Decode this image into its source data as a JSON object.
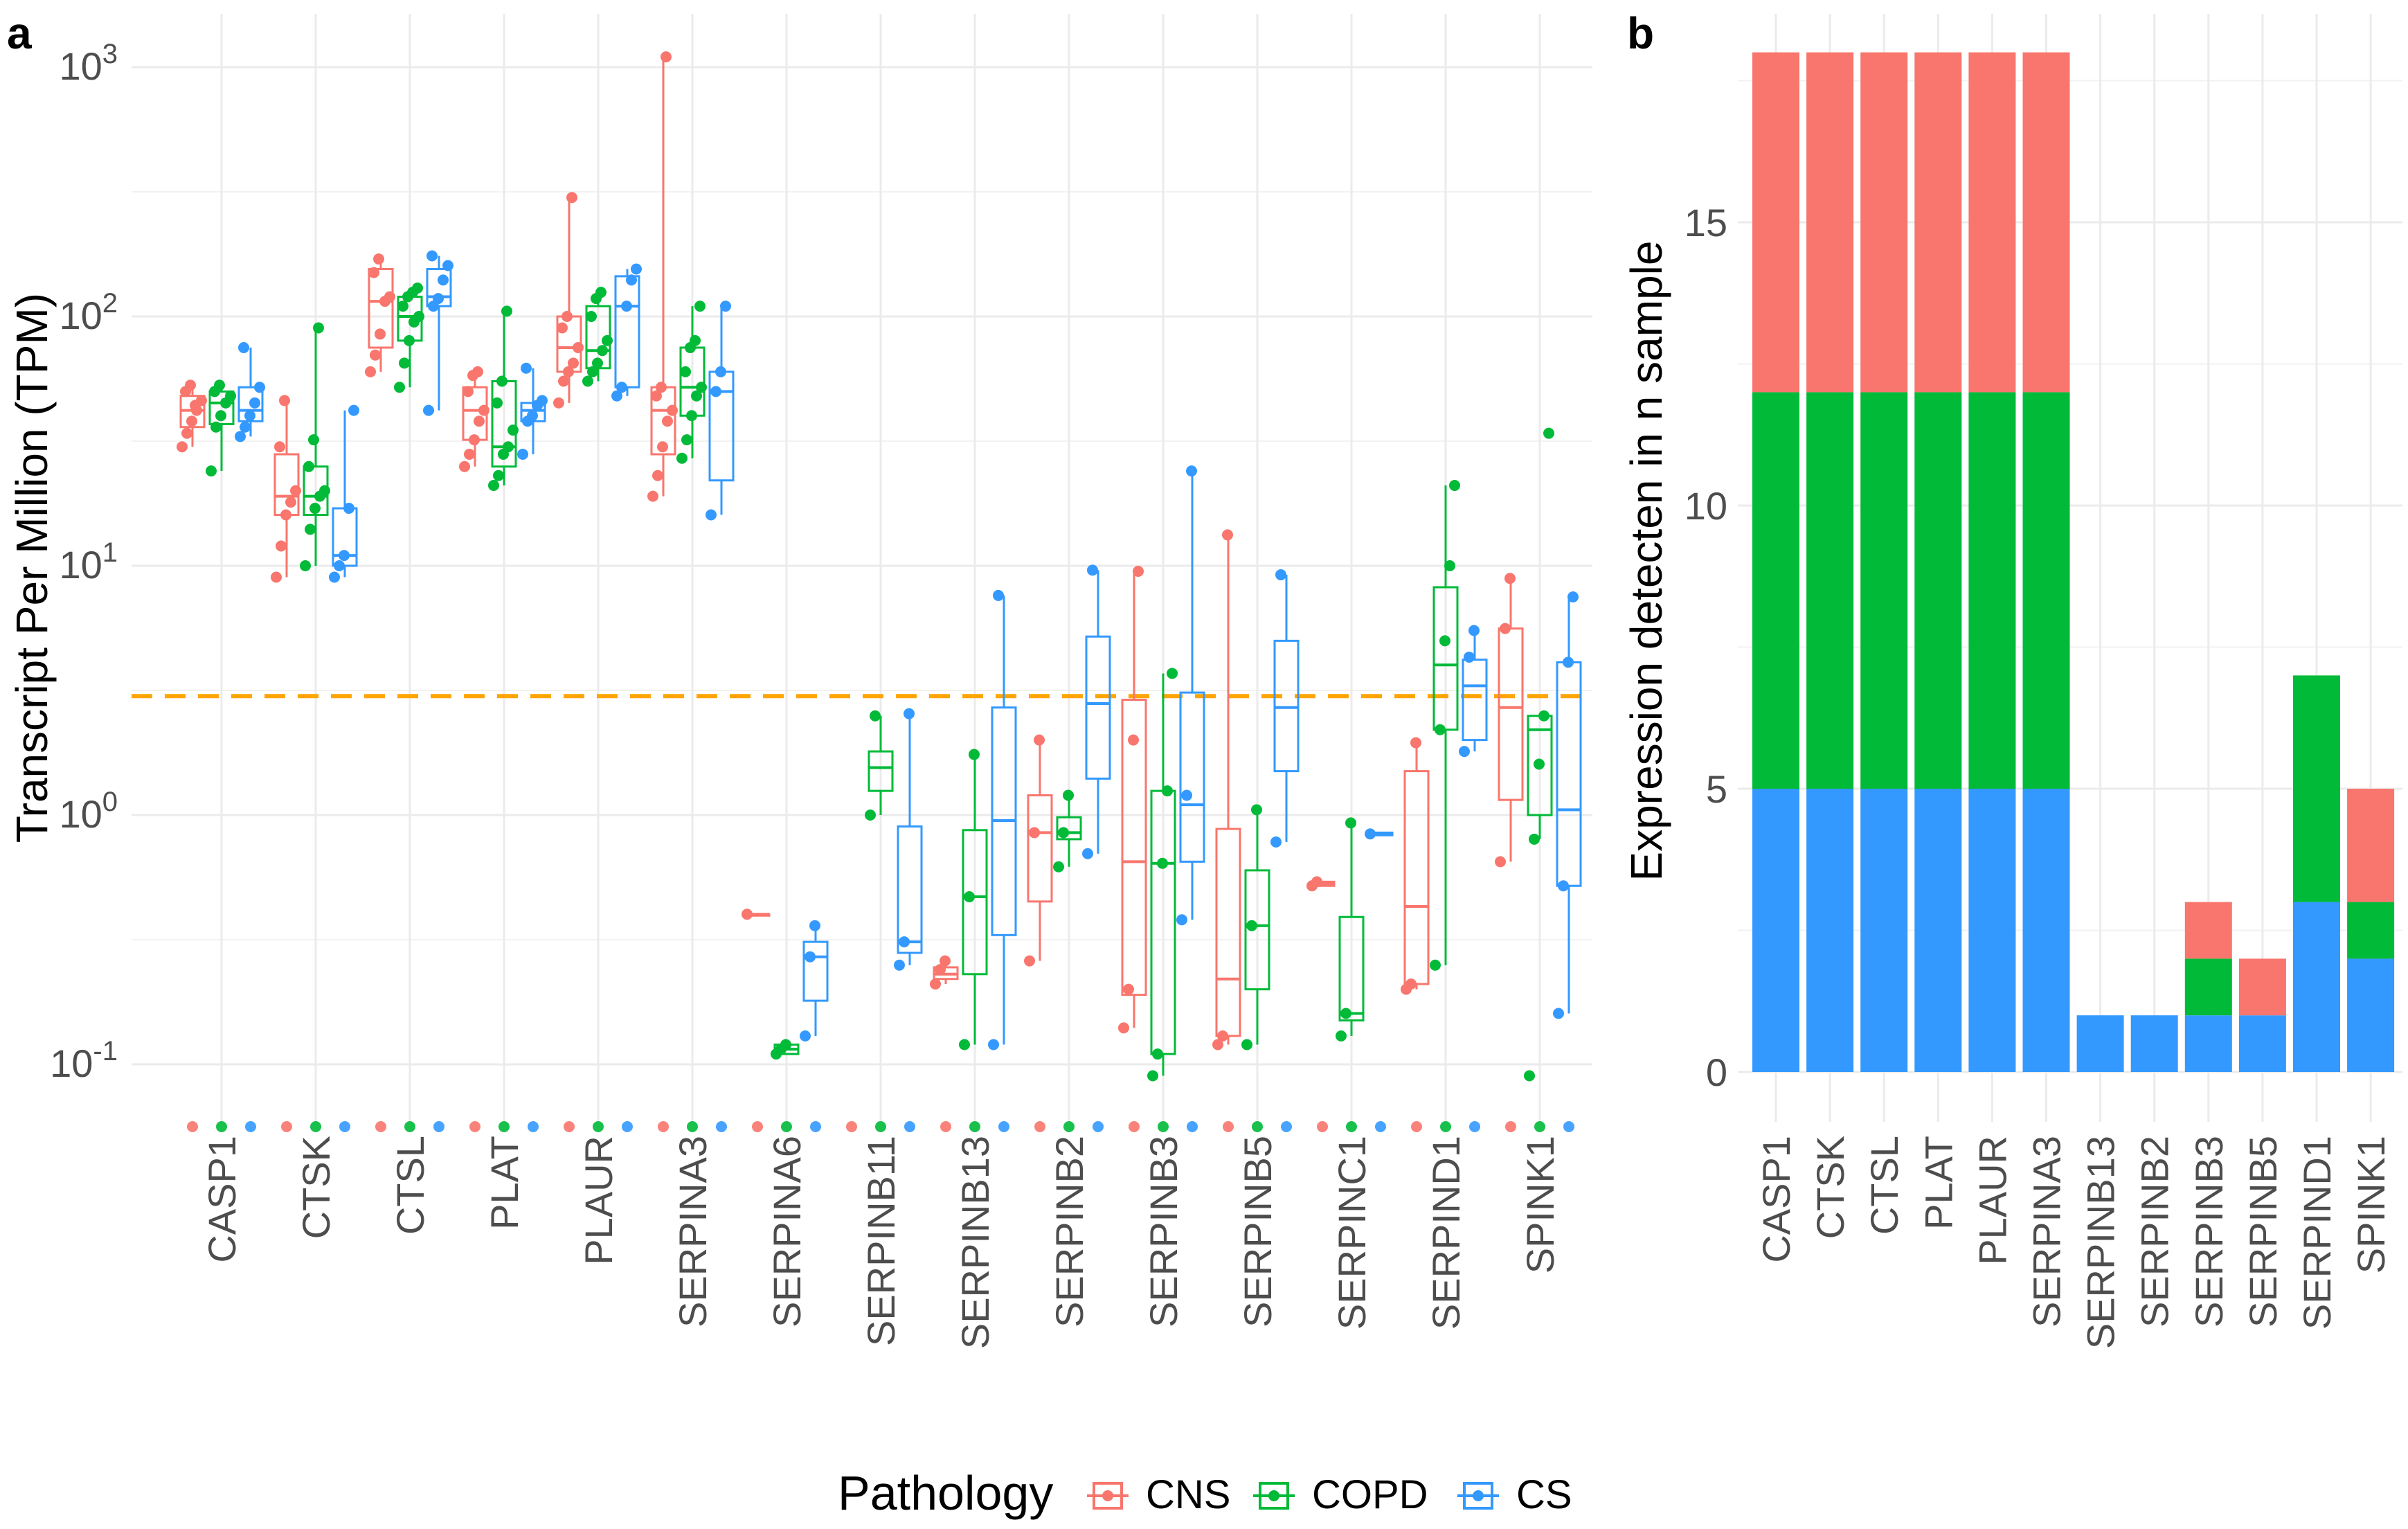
{
  "figure": {
    "panel_a_tag": "a",
    "panel_b_tag": "b",
    "legend_title": "Pathology",
    "colors": {
      "CNS": "#F8766D",
      "COPD": "#00BA38",
      "CS": "#3399FF",
      "threshold": "#FFA500"
    }
  },
  "chart_data": [
    {
      "type": "box",
      "panel": "a",
      "ylabel": "Transcript Per Million (TPM)",
      "xlabel": "",
      "yscale": "log10",
      "ylim": [
        0.05,
        1300
      ],
      "yticks": [
        {
          "value": 0.1,
          "base": "10",
          "exp": "-1"
        },
        {
          "value": 1,
          "base": "10",
          "exp": "0"
        },
        {
          "value": 10,
          "base": "10",
          "exp": "1"
        },
        {
          "value": 100,
          "base": "10",
          "exp": "2"
        },
        {
          "value": 1000,
          "base": "10",
          "exp": "3"
        }
      ],
      "threshold": 3,
      "series_names": [
        "CNS",
        "COPD",
        "CS"
      ],
      "categories": [
        "CASP1",
        "CTSK",
        "CTSL",
        "PLAT",
        "PLAUR",
        "SERPINA3",
        "SERPINA6",
        "SERPINB11",
        "SERPINB13",
        "SERPINB2",
        "SERPINB3",
        "SERPINB5",
        "SERPINC1",
        "SERPIND1",
        "SPINK1"
      ],
      "groups": [
        {
          "gene": "CASP1",
          "CNS": {
            "box": [
              30,
              36,
              42,
              48,
              53
            ],
            "points": [
              30,
              34,
              38,
              42,
              46,
              50,
              53,
              44
            ]
          },
          "COPD": {
            "box": [
              24,
              37,
              45,
              50,
              53
            ],
            "points": [
              24,
              36,
              40,
              45,
              48,
              50,
              53
            ]
          },
          "CS": {
            "box": [
              33,
              38,
              42,
              52,
              75
            ],
            "points": [
              33,
              36,
              40,
              45,
              52,
              75
            ]
          }
        },
        {
          "gene": "CTSK",
          "CNS": {
            "box": [
              9,
              16,
              19,
              28,
              46
            ],
            "points": [
              9,
              12,
              16,
              18,
              20,
              30,
              46
            ]
          },
          "COPD": {
            "box": [
              10,
              16,
              19,
              25,
              90
            ],
            "points": [
              10,
              14,
              17,
              19,
              20,
              25,
              32,
              90
            ]
          },
          "CS": {
            "box": [
              9,
              10,
              11,
              17,
              42
            ],
            "points": [
              9,
              10,
              11,
              17,
              42
            ]
          }
        },
        {
          "gene": "CTSL",
          "CNS": {
            "box": [
              60,
              75,
              115,
              155,
              170
            ],
            "points": [
              60,
              70,
              85,
              115,
              120,
              150,
              170
            ]
          },
          "COPD": {
            "box": [
              52,
              80,
              100,
              120,
              130
            ],
            "points": [
              52,
              65,
              80,
              95,
              100,
              110,
              120,
              125,
              130
            ]
          },
          "CS": {
            "box": [
              42,
              110,
              120,
              155,
              175
            ],
            "points": [
              42,
              110,
              118,
              140,
              160,
              175
            ]
          }
        },
        {
          "gene": "PLAT",
          "CNS": {
            "box": [
              25,
              32,
              42,
              52,
              60
            ],
            "points": [
              25,
              28,
              32,
              38,
              42,
              50,
              58,
              60
            ]
          },
          "COPD": {
            "box": [
              21,
              25,
              30,
              55,
              105
            ],
            "points": [
              21,
              23,
              28,
              30,
              35,
              45,
              55,
              105
            ]
          },
          "CS": {
            "box": [
              28,
              38,
              42,
              45,
              62
            ],
            "points": [
              28,
              38,
              40,
              44,
              46,
              62
            ]
          }
        },
        {
          "gene": "PLAUR",
          "CNS": {
            "box": [
              45,
              60,
              75,
              100,
              300
            ],
            "points": [
              45,
              55,
              60,
              65,
              75,
              90,
              100,
              300
            ]
          },
          "COPD": {
            "box": [
              55,
              62,
              73,
              110,
              125
            ],
            "points": [
              55,
              60,
              65,
              73,
              80,
              100,
              118,
              125
            ]
          },
          "CS": {
            "box": [
              48,
              52,
              110,
              145,
              155
            ],
            "points": [
              48,
              52,
              110,
              140,
              155
            ]
          }
        },
        {
          "gene": "SERPINA3",
          "CNS": {
            "box": [
              19,
              28,
              42,
              52,
              1100
            ],
            "points": [
              19,
              23,
              30,
              38,
              42,
              48,
              52,
              1100
            ]
          },
          "COPD": {
            "box": [
              27,
              40,
              52,
              75,
              110
            ],
            "points": [
              27,
              32,
              40,
              48,
              52,
              60,
              75,
              80,
              110
            ]
          },
          "CS": {
            "box": [
              16,
              22,
              50,
              60,
              110
            ],
            "points": [
              16,
              50,
              60,
              110
            ]
          }
        },
        {
          "gene": "SERPINA6",
          "CNS": {
            "box": [
              0.4,
              0.4,
              0.4,
              0.4,
              0.4
            ],
            "points": [
              0.4
            ]
          },
          "COPD": {
            "box": [
              0.11,
              0.11,
              0.115,
              0.12,
              0.12
            ],
            "points": [
              0.11,
              0.115,
              0.12
            ]
          },
          "CS": {
            "box": [
              0.13,
              0.18,
              0.27,
              0.31,
              0.36
            ],
            "points": [
              0.13,
              0.27,
              0.36
            ]
          }
        },
        {
          "gene": "SERPINB11",
          "COPD": {
            "box": [
              1.0,
              1.25,
              1.55,
              1.8,
              2.5
            ],
            "points": [
              1.0,
              2.5
            ]
          },
          "CS": {
            "box": [
              0.25,
              0.28,
              0.31,
              0.9,
              2.55
            ],
            "points": [
              0.25,
              0.31,
              2.55
            ]
          }
        },
        {
          "gene": "SERPINB13",
          "CNS": {
            "box": [
              0.21,
              0.22,
              0.23,
              0.245,
              0.26
            ],
            "points": [
              0.21,
              0.24,
              0.26
            ]
          },
          "COPD": {
            "box": [
              0.12,
              0.23,
              0.47,
              0.87,
              1.75
            ],
            "points": [
              0.12,
              0.47,
              1.75
            ]
          },
          "CS": {
            "box": [
              0.12,
              0.33,
              0.95,
              2.7,
              7.6
            ],
            "points": [
              0.12,
              7.6
            ]
          }
        },
        {
          "gene": "SERPINB2",
          "CNS": {
            "box": [
              0.26,
              0.45,
              0.85,
              1.2,
              2.0
            ],
            "points": [
              0.26,
              0.85,
              2.0
            ]
          },
          "COPD": {
            "box": [
              0.62,
              0.8,
              0.85,
              0.98,
              1.2
            ],
            "points": [
              0.62,
              0.85,
              1.2
            ]
          },
          "CS": {
            "box": [
              0.7,
              1.4,
              2.8,
              5.2,
              9.6
            ],
            "points": [
              0.7,
              9.6
            ]
          }
        },
        {
          "gene": "SERPINB3",
          "CNS": {
            "box": [
              0.14,
              0.19,
              0.65,
              2.9,
              9.5
            ],
            "points": [
              0.14,
              0.2,
              2.0,
              9.5
            ]
          },
          "COPD": {
            "box": [
              0.09,
              0.11,
              0.64,
              1.25,
              3.7
            ],
            "points": [
              0.09,
              0.11,
              0.64,
              1.25,
              3.7
            ]
          },
          "CS": {
            "box": [
              0.38,
              0.65,
              1.1,
              3.1,
              24
            ],
            "points": [
              0.38,
              1.2,
              24
            ]
          }
        },
        {
          "gene": "SERPINB5",
          "CNS": {
            "box": [
              0.12,
              0.13,
              0.22,
              0.88,
              13.3
            ],
            "points": [
              0.12,
              0.13,
              13.3
            ]
          },
          "COPD": {
            "box": [
              0.12,
              0.2,
              0.36,
              0.6,
              1.05
            ],
            "points": [
              0.12,
              0.36,
              1.05
            ]
          },
          "CS": {
            "box": [
              0.78,
              1.5,
              2.7,
              5.0,
              9.2
            ],
            "points": [
              0.78,
              9.2
            ]
          }
        },
        {
          "gene": "SERPINC1",
          "CNS": {
            "box": [
              0.52,
              0.52,
              0.53,
              0.54,
              0.54
            ],
            "points": [
              0.52,
              0.54
            ]
          },
          "COPD": {
            "box": [
              0.13,
              0.15,
              0.16,
              0.39,
              0.93
            ],
            "points": [
              0.13,
              0.16,
              0.93
            ]
          },
          "CS": {
            "box": [
              0.83,
              0.83,
              0.84,
              0.85,
              0.85
            ],
            "points": [
              0.84
            ]
          }
        },
        {
          "gene": "SERPIND1",
          "CNS": {
            "box": [
              0.2,
              0.21,
              0.43,
              1.5,
              1.95
            ],
            "points": [
              0.2,
              0.21,
              1.95
            ]
          },
          "COPD": {
            "box": [
              0.25,
              2.2,
              4.0,
              8.2,
              21
            ],
            "points": [
              0.25,
              2.2,
              5.0,
              10,
              21
            ]
          },
          "CS": {
            "box": [
              1.8,
              2.0,
              3.3,
              4.2,
              5.5
            ],
            "points": [
              1.8,
              4.3,
              5.5
            ]
          }
        },
        {
          "gene": "SPINK1",
          "CNS": {
            "box": [
              0.65,
              1.15,
              2.7,
              5.6,
              8.9
            ],
            "points": [
              0.65,
              5.6,
              8.9
            ]
          },
          "COPD": {
            "box": [
              0.8,
              1.0,
              2.2,
              2.5,
              2.5
            ],
            "points": [
              0.09,
              0.8,
              1.6,
              2.5,
              34
            ]
          },
          "CS": {
            "box": [
              0.16,
              0.52,
              1.05,
              4.1,
              7.5
            ],
            "points": [
              0.16,
              0.52,
              4.1,
              7.5
            ]
          }
        }
      ]
    },
    {
      "type": "bar",
      "panel": "b",
      "stacked": true,
      "ylabel": "Expression detecten in n sample",
      "xlabel": "",
      "ylim": [
        0,
        18
      ],
      "yticks": [
        0,
        5,
        10,
        15
      ],
      "categories": [
        "CASP1",
        "CTSK",
        "CTSL",
        "PLAT",
        "PLAUR",
        "SERPINA3",
        "SERPINB13",
        "SERPINB2",
        "SERPINB3",
        "SERPINB5",
        "SERPIND1",
        "SPINK1"
      ],
      "series": [
        {
          "name": "CS",
          "values": [
            5,
            5,
            5,
            5,
            5,
            5,
            1,
            1,
            1,
            1,
            3,
            2
          ]
        },
        {
          "name": "COPD",
          "values": [
            7,
            7,
            7,
            7,
            7,
            7,
            0,
            0,
            1,
            0,
            4,
            1
          ]
        },
        {
          "name": "CNS",
          "values": [
            6,
            6,
            6,
            6,
            6,
            6,
            0,
            0,
            1,
            1,
            0,
            2
          ]
        }
      ]
    }
  ]
}
